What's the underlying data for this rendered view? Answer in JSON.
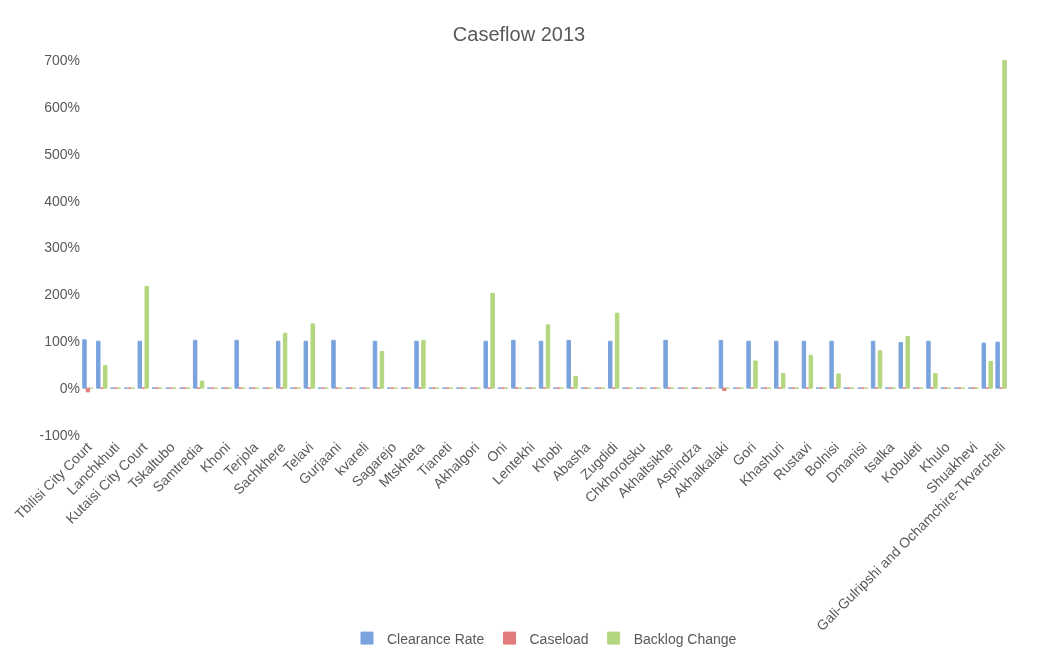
{
  "chart_data": {
    "type": "bar",
    "title": "Caseflow 2013",
    "categories": [
      "Tbilisi City Court",
      null,
      "Lanchkhuti",
      null,
      "Kutaisi City Court",
      null,
      "Tskaltubo",
      null,
      "Samtredia",
      null,
      "Khoni",
      null,
      "Terjola",
      null,
      "Sachkhere",
      null,
      "Telavi",
      null,
      "Gurjaani",
      null,
      "kvareli",
      null,
      "Sagarejo",
      null,
      "Mtskheta",
      null,
      "Tianeti",
      null,
      "Akhalgori",
      null,
      "Oni",
      null,
      "Lentekhi",
      null,
      "Khobi",
      null,
      "Abasha",
      null,
      "Zugdidi",
      null,
      "Chkhorotsku",
      null,
      "Akhaltsikhe",
      null,
      "Aspindza",
      null,
      "Akhalkalaki",
      null,
      "Gori",
      null,
      "Khashuri",
      null,
      "Rustavi",
      null,
      "Bolnisi",
      null,
      "Dmanisi",
      null,
      "tsalka",
      null,
      "Kobuleti",
      null,
      "Khulo",
      null,
      "Shuakhevi",
      null,
      "Gali-Gulripshi and Ochamchire-Tkvarcheli"
    ],
    "series": [
      {
        "name": "Clearance Rate",
        "color": "#7aa3dd",
        "values": [
          103,
          100,
          0,
          0,
          100,
          0,
          0,
          0,
          102,
          0,
          0,
          102,
          0,
          0,
          100,
          0,
          100,
          0,
          102,
          0,
          0,
          100,
          0,
          0,
          100,
          0,
          0,
          0,
          0,
          100,
          0,
          102,
          0,
          100,
          0,
          102,
          0,
          0,
          100,
          0,
          0,
          0,
          102,
          0,
          0,
          0,
          102,
          0,
          100,
          0,
          100,
          0,
          100,
          0,
          100,
          0,
          0,
          100,
          0,
          97,
          0,
          100,
          0,
          0,
          0,
          96,
          98
        ]
      },
      {
        "name": "Caseload",
        "color": "#e27d7d",
        "values": [
          -8,
          0,
          0,
          0,
          0,
          0,
          0,
          0,
          0,
          0,
          0,
          0,
          0,
          0,
          0,
          0,
          0,
          0,
          0,
          0,
          0,
          0,
          0,
          0,
          0,
          0,
          0,
          0,
          0,
          0,
          0,
          0,
          0,
          0,
          0,
          0,
          0,
          0,
          0,
          0,
          0,
          0,
          0,
          0,
          0,
          0,
          -5,
          0,
          0,
          0,
          0,
          0,
          0,
          0,
          0,
          0,
          0,
          0,
          0,
          0,
          0,
          0,
          0,
          0,
          0,
          0,
          0
        ]
      },
      {
        "name": "Backlog Change",
        "color": "#b3d67e",
        "values": [
          0,
          48,
          0,
          0,
          217,
          0,
          0,
          0,
          15,
          0,
          0,
          0,
          0,
          0,
          117,
          0,
          137,
          0,
          0,
          0,
          0,
          78,
          0,
          0,
          102,
          0,
          0,
          0,
          0,
          202,
          0,
          0,
          0,
          135,
          0,
          25,
          0,
          0,
          160,
          0,
          0,
          0,
          0,
          0,
          0,
          0,
          0,
          0,
          58,
          0,
          31,
          0,
          70,
          0,
          30,
          0,
          0,
          80,
          0,
          110,
          0,
          31,
          0,
          0,
          0,
          57,
          700
        ]
      }
    ],
    "ylim": [
      -100,
      700
    ],
    "yticks": [
      {
        "value": -100,
        "label": "-100%"
      },
      {
        "value": 0,
        "label": "0%"
      },
      {
        "value": 100,
        "label": "100%"
      },
      {
        "value": 200,
        "label": "200%"
      },
      {
        "value": 300,
        "label": "300%"
      },
      {
        "value": 400,
        "label": "400%"
      },
      {
        "value": 500,
        "label": "500%"
      },
      {
        "value": 600,
        "label": "600%"
      },
      {
        "value": 700,
        "label": "700%"
      }
    ],
    "legend": "bottom"
  }
}
